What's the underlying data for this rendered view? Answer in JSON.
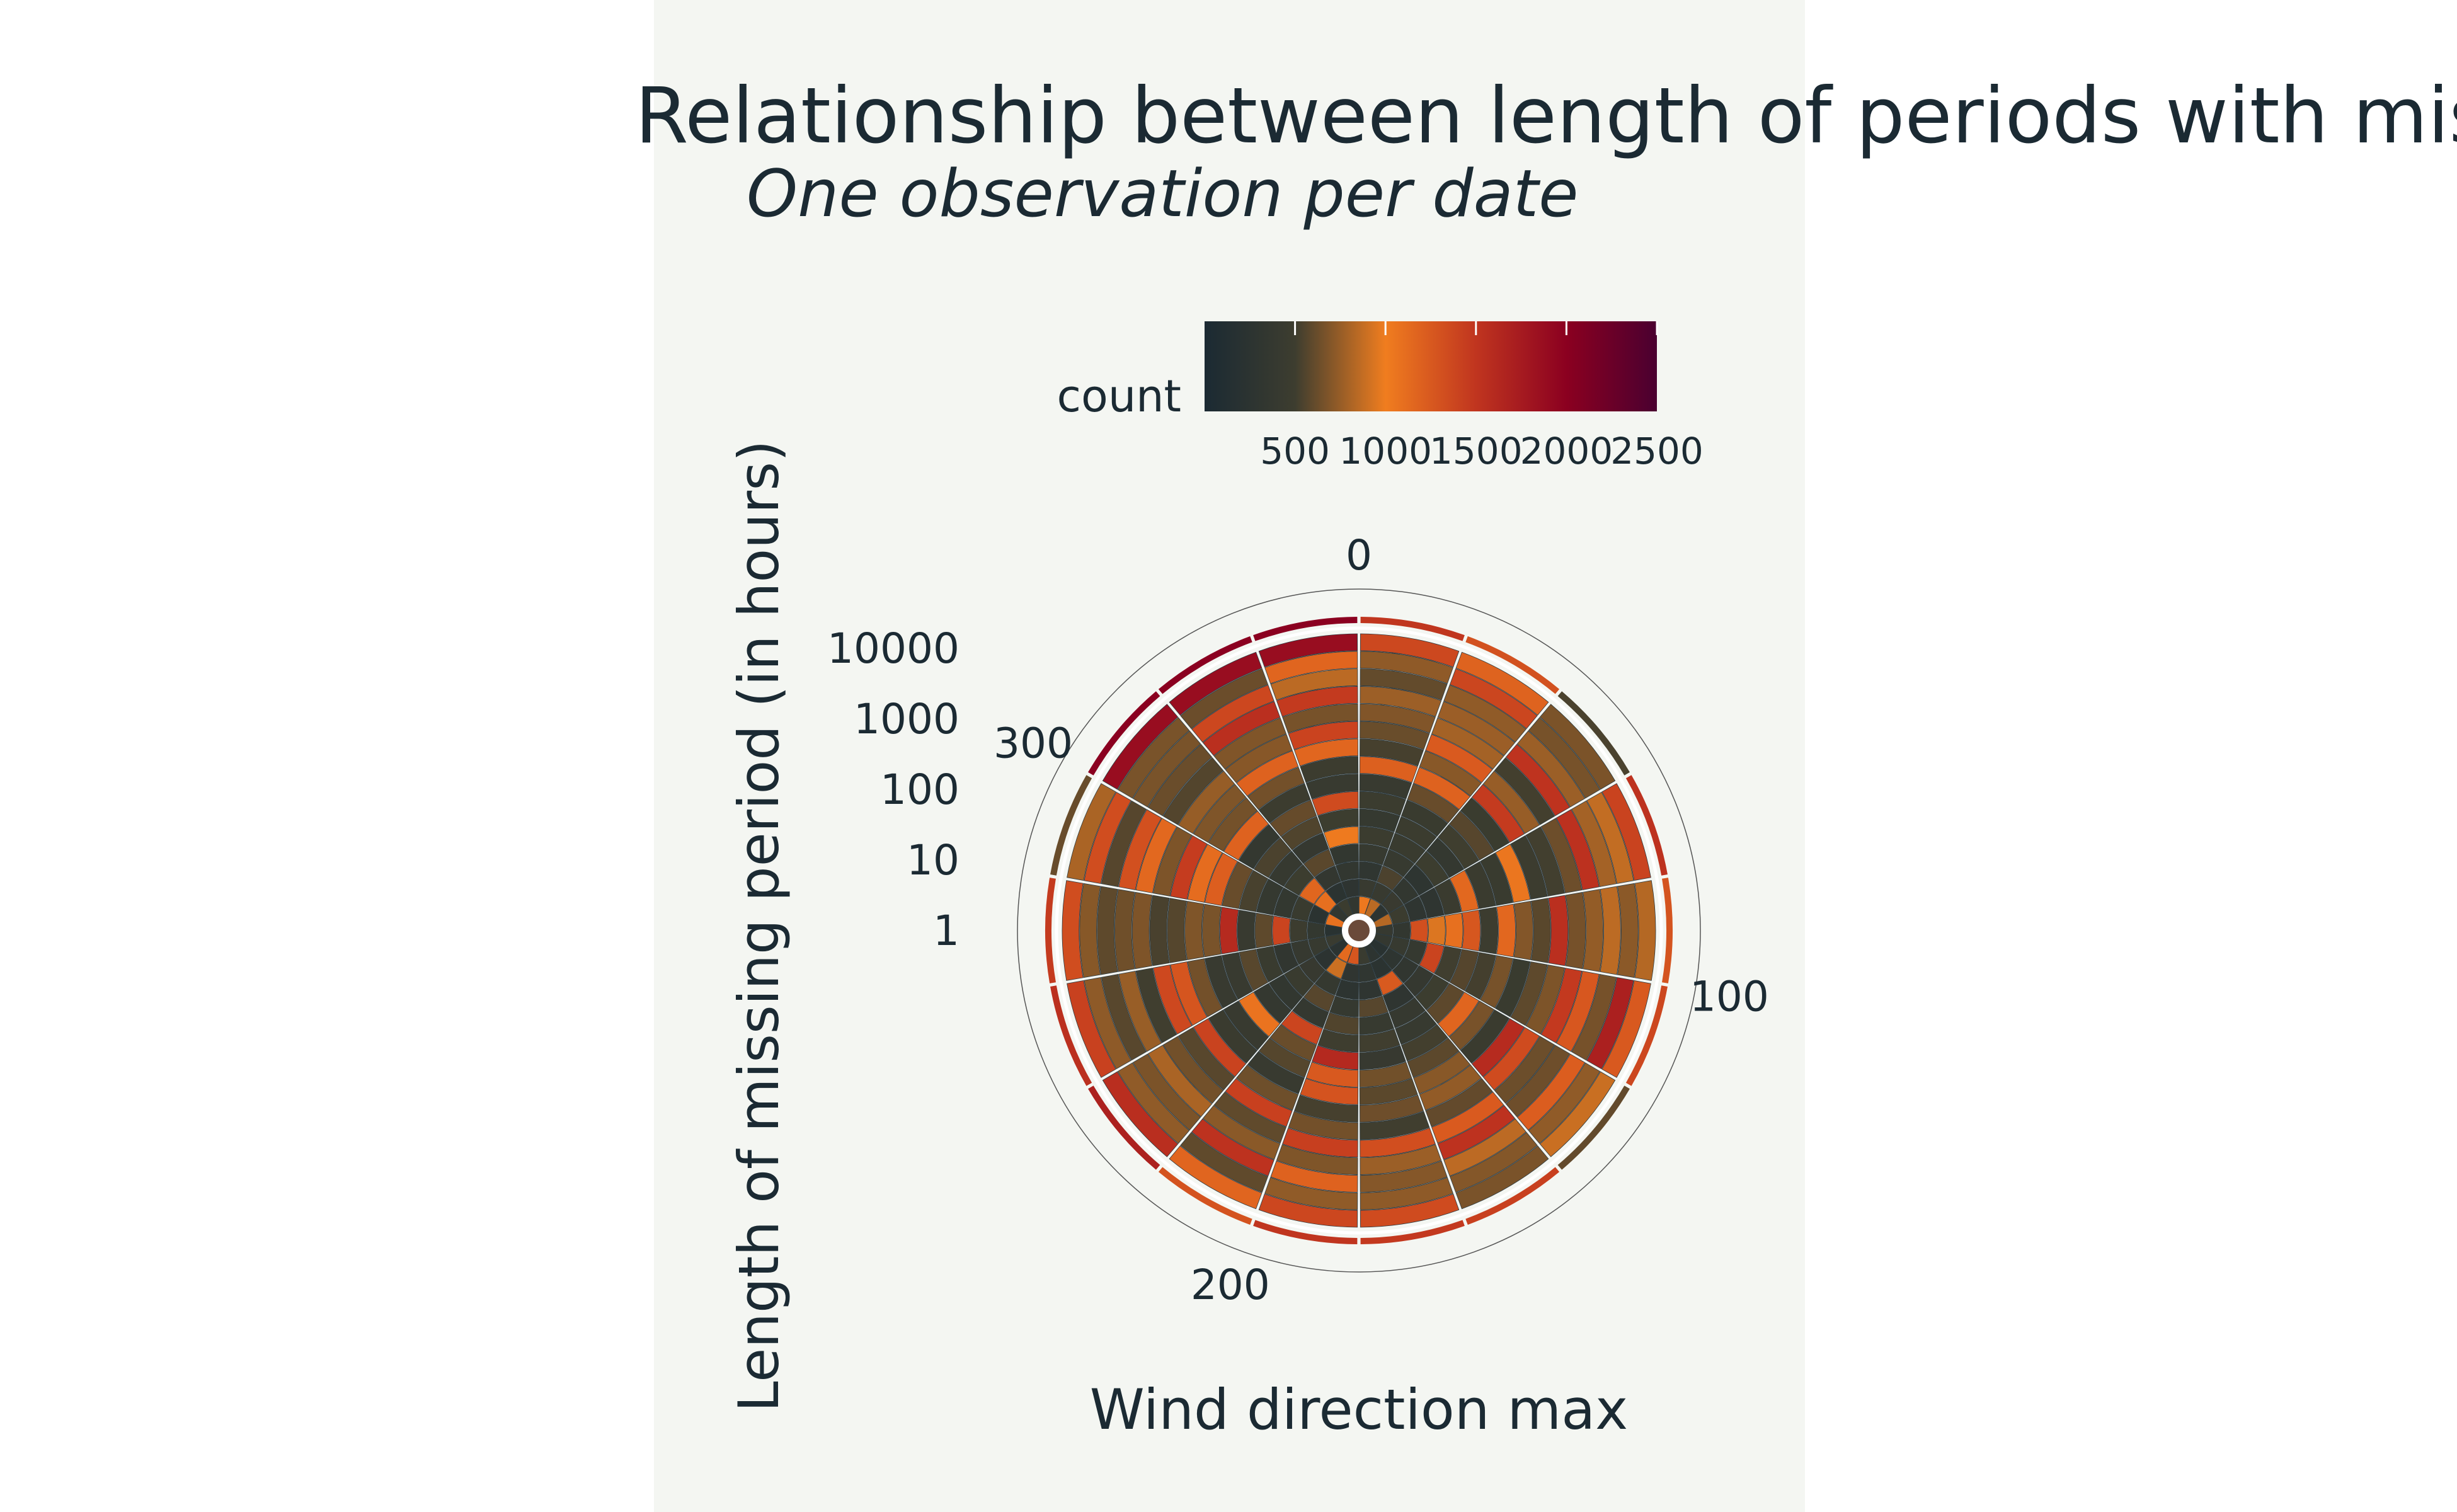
{
  "chart_data": {
    "type": "heatmap",
    "subtype": "polar-binned-heatmap",
    "title": "Relationship between length of periods with missing",
    "subtitle": "One observation per date",
    "xlabel": "Wind direction max",
    "ylabel": "Length of missing period (in hours)",
    "angular_axis": {
      "ticks": [
        "0",
        "100",
        "200",
        "300"
      ],
      "range": [
        0,
        360
      ],
      "direction": "clockwise"
    },
    "radial_axis": {
      "scale": "log",
      "ticks": [
        "1",
        "10",
        "100",
        "1000",
        "10000"
      ]
    },
    "colorbar": {
      "title": "count",
      "ticks": [
        "500",
        "1000",
        "1500",
        "2000",
        "2500"
      ],
      "range": [
        0,
        2500
      ],
      "colors": [
        "#1b2a33",
        "#3d3d2f",
        "#f07d1f",
        "#c0351f",
        "#8b0020",
        "#4a0030"
      ]
    },
    "sectors_deg": 20,
    "rings": 16,
    "grid": true,
    "legend": "colorbar top"
  }
}
